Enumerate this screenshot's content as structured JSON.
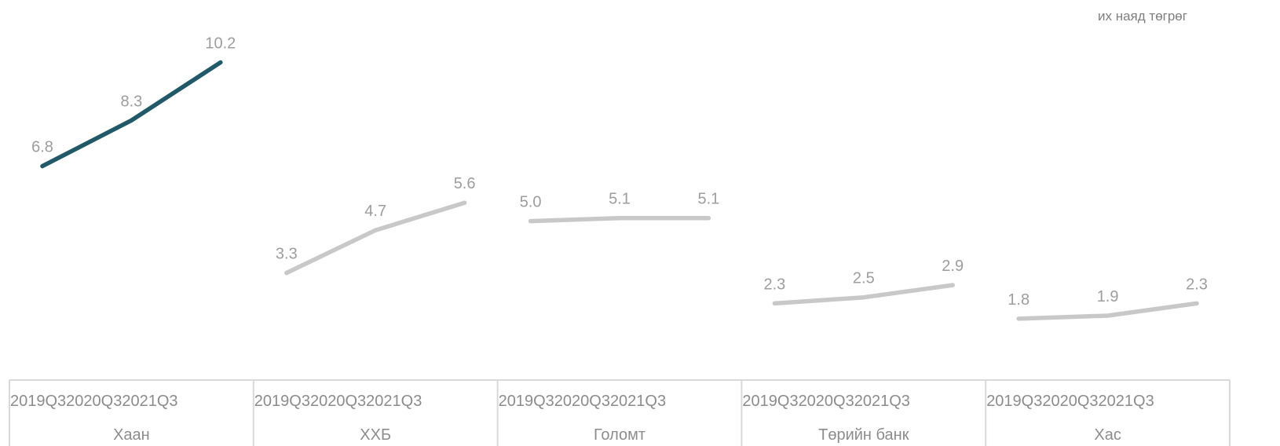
{
  "chart_data": {
    "type": "line",
    "unit": "их наяд төгрөг",
    "x_ticks": [
      "2019Q3",
      "2020Q3",
      "2021Q3"
    ],
    "groups": [
      {
        "name": "Хаан",
        "values": [
          6.8,
          8.3,
          10.2
        ],
        "labels": [
          "6.8",
          "8.3",
          "10.2"
        ],
        "color": "#215968"
      },
      {
        "name": "ХХБ",
        "values": [
          3.3,
          4.7,
          5.6
        ],
        "labels": [
          "3.3",
          "4.7",
          "5.6"
        ],
        "color": "#c8c8c8"
      },
      {
        "name": "Голомт",
        "values": [
          5.0,
          5.1,
          5.1
        ],
        "labels": [
          "5.0",
          "5.1",
          "5.1"
        ],
        "color": "#c8c8c8"
      },
      {
        "name": "Төрийн банк",
        "values": [
          2.3,
          2.5,
          2.9
        ],
        "labels": [
          "2.3",
          "2.5",
          "2.9"
        ],
        "color": "#c8c8c8"
      },
      {
        "name": "Хас",
        "values": [
          1.8,
          1.9,
          2.3
        ],
        "labels": [
          "1.8",
          "1.9",
          "2.3"
        ],
        "color": "#c8c8c8"
      }
    ]
  }
}
